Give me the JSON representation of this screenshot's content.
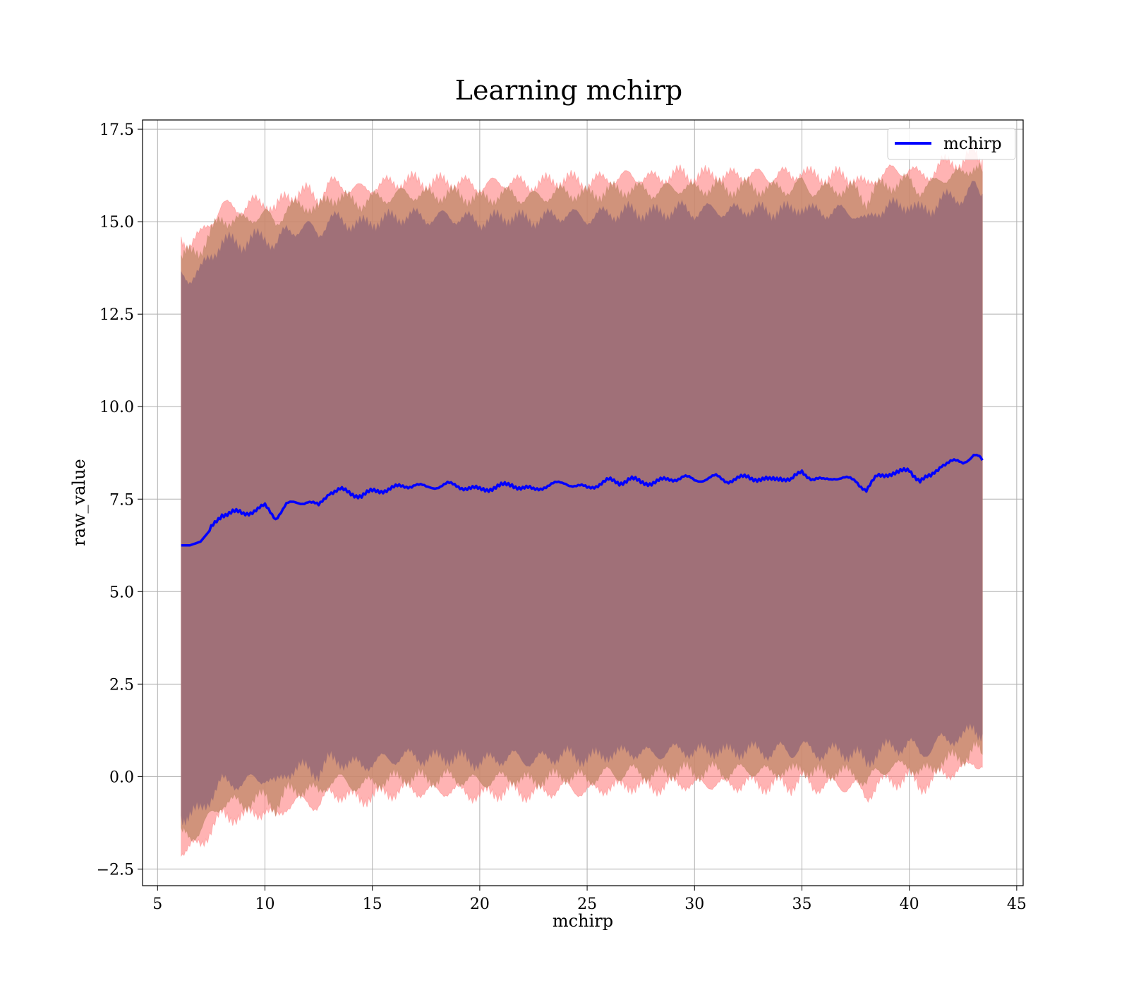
{
  "chart_data": {
    "type": "area",
    "title": "Learning mchirp",
    "xlabel": "mchirp",
    "ylabel": "raw_value",
    "xlim": [
      4.3,
      45.3
    ],
    "ylim": [
      -2.95,
      17.75
    ],
    "xticks": [
      5,
      10,
      15,
      20,
      25,
      30,
      35,
      40,
      45
    ],
    "yticks": [
      -2.5,
      0.0,
      2.5,
      5.0,
      7.5,
      10.0,
      12.5,
      15.0,
      17.5
    ],
    "xtick_labels": [
      "5",
      "10",
      "15",
      "20",
      "25",
      "30",
      "35",
      "40",
      "45"
    ],
    "ytick_labels": [
      "−2.5",
      "0.0",
      "2.5",
      "5.0",
      "7.5",
      "10.0",
      "12.5",
      "15.0",
      "17.5"
    ],
    "grid": true,
    "legend": {
      "position": "top-right",
      "entries": [
        "mchirp"
      ]
    },
    "colors": {
      "line": "#0000ff",
      "band_outer": "#ff8080",
      "band_mid": "#c08868",
      "band_inner": "#a07078"
    },
    "x": [
      6.1,
      6.5,
      7.0,
      7.5,
      8.0,
      8.5,
      9.0,
      9.5,
      10.0,
      10.5,
      11.0,
      11.5,
      12.0,
      12.5,
      13.0,
      13.5,
      14.0,
      14.5,
      15.0,
      15.5,
      16.0,
      16.5,
      17.0,
      17.5,
      18.0,
      18.5,
      19.0,
      19.5,
      20.0,
      20.5,
      21.0,
      21.5,
      22.0,
      22.5,
      23.0,
      23.5,
      24.0,
      24.5,
      25.0,
      25.5,
      26.0,
      26.5,
      27.0,
      27.5,
      28.0,
      28.5,
      29.0,
      29.5,
      30.0,
      30.5,
      31.0,
      31.5,
      32.0,
      32.5,
      33.0,
      33.5,
      34.0,
      34.5,
      35.0,
      35.5,
      36.0,
      36.5,
      37.0,
      37.5,
      38.0,
      38.5,
      39.0,
      39.5,
      40.0,
      40.5,
      41.0,
      41.5,
      42.0,
      42.5,
      43.0,
      43.4
    ],
    "series": [
      {
        "name": "mchirp",
        "values": [
          6.25,
          6.25,
          6.35,
          6.7,
          7.1,
          7.15,
          7.1,
          7.2,
          7.3,
          7.0,
          7.35,
          7.4,
          7.45,
          7.3,
          7.7,
          7.75,
          7.65,
          7.6,
          7.7,
          7.75,
          7.8,
          7.85,
          7.9,
          7.8,
          7.85,
          7.9,
          7.85,
          7.8,
          7.75,
          7.8,
          7.85,
          7.9,
          7.8,
          7.75,
          7.85,
          7.9,
          7.95,
          7.85,
          7.8,
          7.9,
          8.0,
          7.95,
          8.05,
          7.95,
          7.95,
          8.0,
          8.05,
          8.1,
          8.0,
          8.05,
          8.1,
          8.0,
          8.05,
          8.1,
          8.05,
          8.0,
          8.1,
          8.0,
          8.25,
          8.05,
          8.0,
          8.1,
          8.05,
          8.0,
          7.75,
          8.1,
          8.2,
          8.2,
          8.3,
          8.0,
          8.1,
          8.45,
          8.5,
          8.5,
          8.7,
          8.55
        ]
      }
    ],
    "bands": {
      "outer_upper": [
        14.45,
        14.45,
        14.6,
        15.05,
        15.4,
        15.4,
        15.35,
        15.5,
        15.55,
        15.3,
        15.7,
        15.75,
        15.8,
        15.65,
        16.0,
        16.0,
        15.9,
        15.85,
        15.95,
        16.0,
        16.05,
        16.1,
        16.1,
        16.05,
        16.05,
        16.1,
        16.05,
        16.0,
        15.95,
        16.0,
        16.05,
        16.1,
        16.0,
        16.0,
        16.05,
        16.1,
        16.15,
        16.1,
        16.05,
        16.1,
        16.2,
        16.15,
        16.25,
        16.2,
        16.15,
        16.2,
        16.25,
        16.3,
        16.2,
        16.25,
        16.3,
        16.2,
        16.25,
        16.3,
        16.25,
        16.2,
        16.3,
        16.2,
        16.4,
        16.2,
        16.2,
        16.25,
        16.2,
        16.2,
        15.9,
        16.25,
        16.35,
        16.35,
        16.45,
        16.2,
        16.3,
        16.55,
        16.6,
        16.6,
        16.9,
        16.7
      ],
      "mid_upper": [
        14.1,
        14.1,
        14.25,
        14.7,
        15.05,
        15.05,
        15.0,
        15.15,
        15.2,
        14.95,
        15.35,
        15.4,
        15.45,
        15.3,
        15.65,
        15.65,
        15.55,
        15.5,
        15.6,
        15.65,
        15.7,
        15.75,
        15.75,
        15.7,
        15.7,
        15.75,
        15.7,
        15.65,
        15.6,
        15.65,
        15.7,
        15.75,
        15.65,
        15.65,
        15.7,
        15.75,
        15.8,
        15.75,
        15.7,
        15.75,
        15.85,
        15.8,
        15.9,
        15.85,
        15.8,
        15.85,
        15.9,
        15.95,
        15.85,
        15.9,
        15.95,
        15.85,
        15.9,
        15.95,
        15.9,
        15.85,
        15.95,
        15.85,
        16.05,
        15.85,
        15.85,
        15.9,
        15.85,
        15.85,
        15.55,
        15.9,
        16.0,
        16.0,
        16.1,
        15.85,
        15.95,
        16.2,
        16.25,
        16.25,
        16.55,
        16.35
      ],
      "inner_upper": [
        13.5,
        13.5,
        13.65,
        14.1,
        14.45,
        14.45,
        14.4,
        14.55,
        14.6,
        14.35,
        14.75,
        14.8,
        14.85,
        14.7,
        15.05,
        15.05,
        14.95,
        14.9,
        15.0,
        15.05,
        15.1,
        15.15,
        15.15,
        15.1,
        15.1,
        15.15,
        15.1,
        15.05,
        15.0,
        15.05,
        15.1,
        15.15,
        15.05,
        15.05,
        15.1,
        15.15,
        15.2,
        15.15,
        15.1,
        15.15,
        15.25,
        15.2,
        15.3,
        15.25,
        15.2,
        15.25,
        15.3,
        15.35,
        15.25,
        15.3,
        15.35,
        15.25,
        15.3,
        15.35,
        15.3,
        15.25,
        15.35,
        15.25,
        15.45,
        15.25,
        15.25,
        15.3,
        15.25,
        15.25,
        14.95,
        15.3,
        15.4,
        15.4,
        15.5,
        15.25,
        15.35,
        15.6,
        15.65,
        15.65,
        15.95,
        15.75
      ],
      "inner_lower": [
        -1.05,
        -1.05,
        -0.9,
        -0.5,
        -0.15,
        -0.15,
        -0.2,
        -0.05,
        0.0,
        -0.25,
        0.15,
        0.2,
        0.25,
        0.1,
        0.45,
        0.45,
        0.35,
        0.3,
        0.4,
        0.45,
        0.5,
        0.55,
        0.55,
        0.5,
        0.5,
        0.55,
        0.5,
        0.45,
        0.4,
        0.45,
        0.5,
        0.55,
        0.45,
        0.45,
        0.5,
        0.55,
        0.6,
        0.55,
        0.5,
        0.55,
        0.65,
        0.6,
        0.7,
        0.65,
        0.6,
        0.65,
        0.7,
        0.75,
        0.65,
        0.7,
        0.75,
        0.65,
        0.7,
        0.75,
        0.7,
        0.65,
        0.75,
        0.65,
        0.85,
        0.65,
        0.65,
        0.7,
        0.65,
        0.65,
        0.35,
        0.7,
        0.8,
        0.8,
        0.9,
        0.65,
        0.75,
        1.0,
        1.05,
        1.05,
        1.35,
        1.15
      ],
      "mid_lower": [
        -1.6,
        -1.6,
        -1.45,
        -1.05,
        -0.7,
        -0.7,
        -0.75,
        -0.6,
        -0.55,
        -0.8,
        -0.4,
        -0.35,
        -0.3,
        -0.45,
        -0.1,
        -0.1,
        -0.2,
        -0.25,
        -0.15,
        -0.1,
        -0.05,
        0.0,
        0.0,
        -0.05,
        -0.05,
        0.0,
        -0.05,
        -0.1,
        -0.15,
        -0.1,
        -0.05,
        0.0,
        -0.1,
        -0.1,
        -0.05,
        0.0,
        0.05,
        0.0,
        -0.05,
        0.0,
        0.1,
        0.05,
        0.15,
        0.1,
        0.05,
        0.1,
        0.15,
        0.2,
        0.1,
        0.15,
        0.2,
        0.1,
        0.15,
        0.2,
        0.15,
        0.1,
        0.2,
        0.1,
        0.3,
        0.1,
        0.1,
        0.15,
        0.1,
        0.1,
        -0.2,
        0.15,
        0.25,
        0.25,
        0.35,
        0.1,
        0.2,
        0.45,
        0.5,
        0.5,
        0.8,
        0.6
      ],
      "outer_lower": [
        -1.95,
        -1.95,
        -1.8,
        -1.4,
        -1.05,
        -1.05,
        -1.1,
        -0.95,
        -0.9,
        -1.15,
        -0.75,
        -0.7,
        -0.65,
        -0.8,
        -0.45,
        -0.45,
        -0.55,
        -0.6,
        -0.5,
        -0.45,
        -0.4,
        -0.35,
        -0.35,
        -0.4,
        -0.4,
        -0.35,
        -0.4,
        -0.45,
        -0.5,
        -0.45,
        -0.4,
        -0.35,
        -0.45,
        -0.45,
        -0.4,
        -0.35,
        -0.3,
        -0.35,
        -0.4,
        -0.35,
        -0.25,
        -0.3,
        -0.2,
        -0.25,
        -0.3,
        -0.25,
        -0.2,
        -0.15,
        -0.25,
        -0.2,
        -0.15,
        -0.25,
        -0.2,
        -0.15,
        -0.2,
        -0.25,
        -0.15,
        -0.25,
        -0.05,
        -0.25,
        -0.25,
        -0.2,
        -0.25,
        -0.25,
        -0.55,
        -0.2,
        -0.1,
        -0.1,
        0.0,
        -0.25,
        -0.15,
        0.1,
        0.15,
        0.15,
        0.45,
        0.25
      ]
    }
  }
}
